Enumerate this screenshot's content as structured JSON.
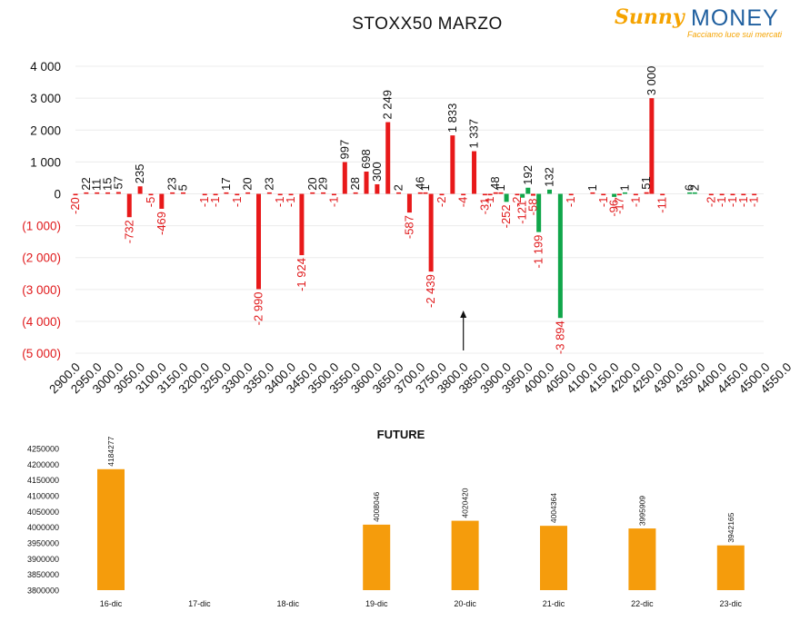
{
  "logo": {
    "brand_a": "Sunny",
    "brand_b": "MONEY",
    "tagline": "Facciamo luce sui mercati"
  },
  "chart_data": [
    {
      "type": "bar",
      "title": "STOXX50 MARZO",
      "xlabel": "",
      "ylabel": "",
      "ylim": [
        -5000,
        4000
      ],
      "y_ticks": [
        "4 000",
        "3 000",
        "2 000",
        "1 000",
        "0",
        "(1 000)",
        "(2 000)",
        "(3 000)",
        "(4 000)",
        "(5 000)"
      ],
      "grid": true,
      "legend": "none",
      "annotation": "arrow pointing up at strike 3800.0",
      "colors": {
        "red": "#e8191a",
        "green": "#10a64a",
        "negative_text": "#e0191b"
      },
      "categories": [
        "2900.0",
        "2950.0",
        "3000.0",
        "3050.0",
        "3100.0",
        "3150.0",
        "3200.0",
        "3250.0",
        "3300.0",
        "3350.0",
        "3400.0",
        "3450.0",
        "3500.0",
        "3550.0",
        "3600.0",
        "3650.0",
        "3700.0",
        "3750.0",
        "3800.0",
        "3850.0",
        "3900.0",
        "3950.0",
        "4000.0",
        "4050.0",
        "4100.0",
        "4150.0",
        "4200.0",
        "4250.0",
        "4300.0",
        "4350.0",
        "4400.0",
        "4450.0",
        "4500.0",
        "4550.0"
      ],
      "bars": [
        {
          "x": 2900,
          "value": -20,
          "label": "-20",
          "color": "red"
        },
        {
          "x": 2925,
          "value": 22,
          "label": "22",
          "color": "red"
        },
        {
          "x": 2950,
          "value": 11,
          "label": "11",
          "color": "red"
        },
        {
          "x": 2975,
          "value": 15,
          "label": "15",
          "color": "red"
        },
        {
          "x": 3000,
          "value": 57,
          "label": "57",
          "color": "red"
        },
        {
          "x": 3025,
          "value": -732,
          "label": "-732",
          "color": "red"
        },
        {
          "x": 3050,
          "value": 235,
          "label": "235",
          "color": "red"
        },
        {
          "x": 3075,
          "value": -5,
          "label": "-5",
          "color": "red"
        },
        {
          "x": 3100,
          "value": -469,
          "label": "-469",
          "color": "red"
        },
        {
          "x": 3125,
          "value": 23,
          "label": "23",
          "color": "red"
        },
        {
          "x": 3150,
          "value": 5,
          "label": "5",
          "color": "red"
        },
        {
          "x": 3200,
          "value": -1,
          "label": "-1",
          "color": "red"
        },
        {
          "x": 3225,
          "value": -1,
          "label": "-1",
          "color": "red"
        },
        {
          "x": 3250,
          "value": 17,
          "label": "17",
          "color": "red"
        },
        {
          "x": 3275,
          "value": -1,
          "label": "-1",
          "color": "red"
        },
        {
          "x": 3300,
          "value": 20,
          "label": "20",
          "color": "red"
        },
        {
          "x": 3325,
          "value": -2990,
          "label": "-2 990",
          "color": "red"
        },
        {
          "x": 3350,
          "value": 23,
          "label": "23",
          "color": "red"
        },
        {
          "x": 3375,
          "value": -1,
          "label": "-1",
          "color": "red"
        },
        {
          "x": 3400,
          "value": -1,
          "label": "-1",
          "color": "red"
        },
        {
          "x": 3425,
          "value": -1924,
          "label": "-1 924",
          "color": "red"
        },
        {
          "x": 3450,
          "value": 20,
          "label": "20",
          "color": "red"
        },
        {
          "x": 3475,
          "value": 29,
          "label": "29",
          "color": "red"
        },
        {
          "x": 3500,
          "value": -1,
          "label": "-1",
          "color": "red"
        },
        {
          "x": 3525,
          "value": 997,
          "label": "997",
          "color": "red"
        },
        {
          "x": 3550,
          "value": 28,
          "label": "28",
          "color": "red"
        },
        {
          "x": 3575,
          "value": 698,
          "label": "698",
          "color": "red"
        },
        {
          "x": 3600,
          "value": 300,
          "label": "300",
          "color": "red"
        },
        {
          "x": 3625,
          "value": 2249,
          "label": "2 249",
          "color": "red"
        },
        {
          "x": 3650,
          "value": 2,
          "label": "2",
          "color": "red"
        },
        {
          "x": 3675,
          "value": -587,
          "label": "-587",
          "color": "red"
        },
        {
          "x": 3700,
          "value": 46,
          "label": "46",
          "color": "red"
        },
        {
          "x": 3712,
          "value": 1,
          "label": "1",
          "color": "red"
        },
        {
          "x": 3725,
          "value": -2439,
          "label": "-2 439",
          "color": "red"
        },
        {
          "x": 3750,
          "value": -2,
          "label": "-2",
          "color": "red"
        },
        {
          "x": 3775,
          "value": 1833,
          "label": "1 833",
          "color": "red"
        },
        {
          "x": 3800,
          "value": -4,
          "label": "-4",
          "color": "red"
        },
        {
          "x": 3825,
          "value": 1337,
          "label": "1 337",
          "color": "red"
        },
        {
          "x": 3850,
          "value": -31,
          "label": "-31",
          "color": "red"
        },
        {
          "x": 3862,
          "value": -1,
          "label": "-1",
          "color": "red"
        },
        {
          "x": 3875,
          "value": 48,
          "label": "48",
          "color": "red"
        },
        {
          "x": 3887,
          "value": 1,
          "label": "1",
          "color": "red"
        },
        {
          "x": 3900,
          "value": -252,
          "label": "-252",
          "color": "green"
        },
        {
          "x": 3925,
          "value": -2,
          "label": "-2",
          "color": "red"
        },
        {
          "x": 3937,
          "value": -121,
          "label": "-121",
          "color": "green"
        },
        {
          "x": 3950,
          "value": 192,
          "label": "192",
          "color": "green"
        },
        {
          "x": 3962,
          "value": -58,
          "label": "-58",
          "color": "red"
        },
        {
          "x": 3975,
          "value": -1199,
          "label": "-1 199",
          "color": "green"
        },
        {
          "x": 4000,
          "value": 132,
          "label": "132",
          "color": "green"
        },
        {
          "x": 4025,
          "value": -3894,
          "label": "-3 894",
          "color": "green"
        },
        {
          "x": 4050,
          "value": -1,
          "label": "-1",
          "color": "red"
        },
        {
          "x": 4100,
          "value": 1,
          "label": "1",
          "color": "red"
        },
        {
          "x": 4125,
          "value": -1,
          "label": "-1",
          "color": "red"
        },
        {
          "x": 4150,
          "value": -96,
          "label": "-96",
          "color": "green"
        },
        {
          "x": 4162,
          "value": -17,
          "label": "-17",
          "color": "red"
        },
        {
          "x": 4175,
          "value": 1,
          "label": "1",
          "color": "green"
        },
        {
          "x": 4200,
          "value": -1,
          "label": "-1",
          "color": "red"
        },
        {
          "x": 4225,
          "value": 51,
          "label": "51",
          "color": "red"
        },
        {
          "x": 4237,
          "value": 3000,
          "label": "3 000",
          "color": "red"
        },
        {
          "x": 4262,
          "value": -11,
          "label": "-11",
          "color": "red"
        },
        {
          "x": 4325,
          "value": 6,
          "label": "6",
          "color": "green"
        },
        {
          "x": 4337,
          "value": 2,
          "label": "2",
          "color": "green"
        },
        {
          "x": 4375,
          "value": -2,
          "label": "-2",
          "color": "red"
        },
        {
          "x": 4400,
          "value": -1,
          "label": "-1",
          "color": "red"
        },
        {
          "x": 4425,
          "value": -1,
          "label": "-1",
          "color": "red"
        },
        {
          "x": 4450,
          "value": -1,
          "label": "-1",
          "color": "red"
        },
        {
          "x": 4475,
          "value": -1,
          "label": "-1",
          "color": "red"
        }
      ]
    },
    {
      "type": "bar",
      "title": "FUTURE",
      "xlabel": "",
      "ylabel": "",
      "ylim": [
        3800000,
        4250000
      ],
      "y_ticks": [
        "4250000",
        "4200000",
        "4150000",
        "4100000",
        "4050000",
        "4000000",
        "3950000",
        "3900000",
        "3850000",
        "3800000"
      ],
      "grid": false,
      "legend": "none",
      "colors": {
        "bar": "#f59c0c"
      },
      "categories": [
        "16-dic",
        "17-dic",
        "18-dic",
        "19-dic",
        "20-dic",
        "21-dic",
        "22-dic",
        "23-dic"
      ],
      "values": [
        4184277,
        null,
        null,
        4008046,
        4020420,
        4004364,
        3995909,
        3942165
      ],
      "labels": [
        "4184277",
        "",
        "",
        "4008046",
        "4020420",
        "4004364",
        "3995909",
        "3942165"
      ]
    }
  ]
}
